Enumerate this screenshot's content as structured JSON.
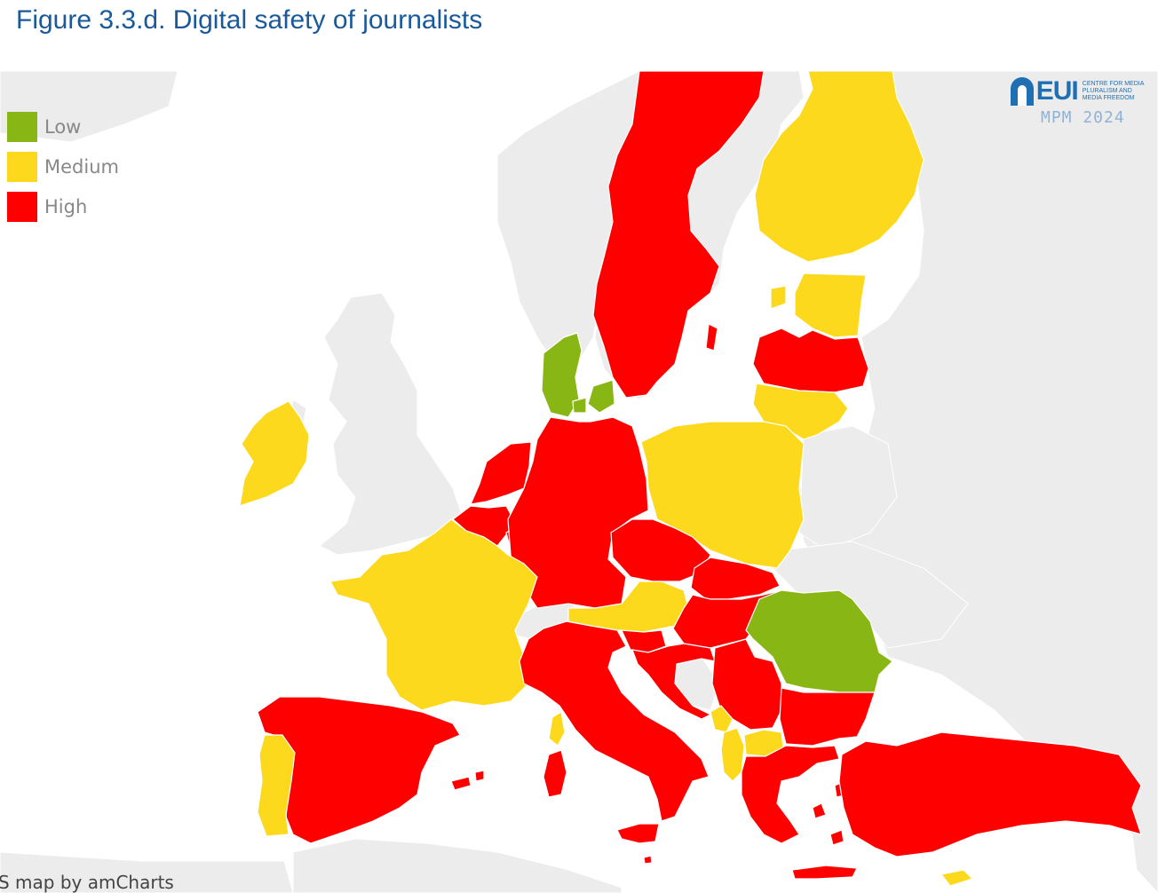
{
  "figure": {
    "title": "Figure 3.3.d. Digital safety of journalists"
  },
  "legend": [
    {
      "label": "Low",
      "color": "#88b614"
    },
    {
      "label": "Medium",
      "color": "#fcd91c"
    },
    {
      "label": "High",
      "color": "#ff0000"
    }
  ],
  "colors": {
    "sea": "#ffffff",
    "non_member_land": "#ececec",
    "country_border": "#ffffff"
  },
  "countries": [
    {
      "name": "Sweden",
      "risk": "High"
    },
    {
      "name": "Finland",
      "risk": "Medium"
    },
    {
      "name": "Estonia",
      "risk": "Medium"
    },
    {
      "name": "Latvia",
      "risk": "High"
    },
    {
      "name": "Lithuania",
      "risk": "Medium"
    },
    {
      "name": "Denmark",
      "risk": "Low"
    },
    {
      "name": "Ireland",
      "risk": "Medium"
    },
    {
      "name": "Netherlands",
      "risk": "High"
    },
    {
      "name": "Belgium",
      "risk": "High"
    },
    {
      "name": "Luxembourg",
      "risk": "High"
    },
    {
      "name": "Germany",
      "risk": "High"
    },
    {
      "name": "Poland",
      "risk": "Medium"
    },
    {
      "name": "France",
      "risk": "Medium"
    },
    {
      "name": "Czechia",
      "risk": "High"
    },
    {
      "name": "Slovakia",
      "risk": "High"
    },
    {
      "name": "Austria",
      "risk": "Medium"
    },
    {
      "name": "Hungary",
      "risk": "High"
    },
    {
      "name": "Romania",
      "risk": "Low"
    },
    {
      "name": "Slovenia",
      "risk": "High"
    },
    {
      "name": "Croatia",
      "risk": "High"
    },
    {
      "name": "Italy",
      "risk": "High"
    },
    {
      "name": "Spain",
      "risk": "High"
    },
    {
      "name": "Portugal",
      "risk": "Medium"
    },
    {
      "name": "Serbia",
      "risk": "High"
    },
    {
      "name": "Montenegro",
      "risk": "Medium"
    },
    {
      "name": "Albania",
      "risk": "Medium"
    },
    {
      "name": "North Macedonia",
      "risk": "Medium"
    },
    {
      "name": "Bulgaria",
      "risk": "High"
    },
    {
      "name": "Greece",
      "risk": "High"
    },
    {
      "name": "Turkey",
      "risk": "High"
    },
    {
      "name": "Malta",
      "risk": "High"
    },
    {
      "name": "Cyprus",
      "risk": "Medium"
    }
  ],
  "logo": {
    "mark": "EUI",
    "subtitle": "CENTRE FOR MEDIA PLURALISM AND MEDIA FREEDOM",
    "edition": "MPM 2024"
  },
  "credit": "S map by amCharts"
}
